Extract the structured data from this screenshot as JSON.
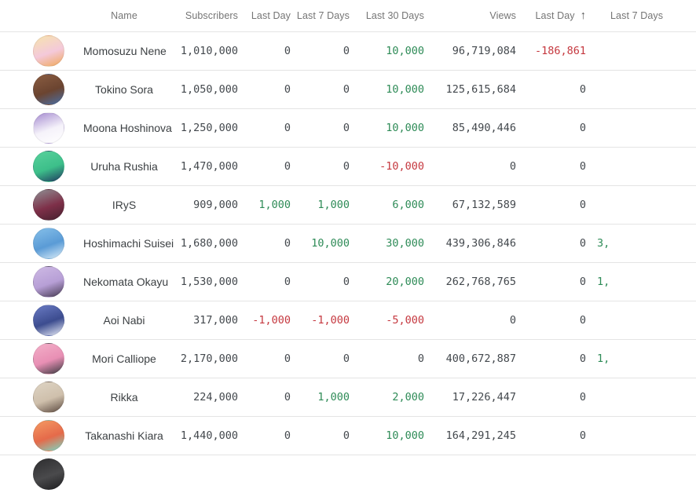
{
  "table": {
    "columns": [
      {
        "key": "name",
        "label": "Name"
      },
      {
        "key": "subscribers",
        "label": "Subscribers"
      },
      {
        "key": "last_day",
        "label": "Last Day"
      },
      {
        "key": "last_7_days",
        "label": "Last 7 Days"
      },
      {
        "key": "last_30_days",
        "label": "Last 30 Days"
      },
      {
        "key": "views",
        "label": "Views"
      },
      {
        "key": "views_last_day",
        "label": "Last Day",
        "sorted": true
      },
      {
        "key": "views_last_7_days",
        "label": "Last 7 Days",
        "clipped": true
      }
    ],
    "sort": {
      "column_label": "Last Day",
      "direction": "ascending"
    },
    "rows": [
      {
        "name": "Momosuzu Nene",
        "subscribers": "1,010,000",
        "last_day": "0",
        "last_7_days": "0",
        "last_30_days": "10,000",
        "views": "96,719,084",
        "views_last_day": "-186,861",
        "views_last_7_days": "",
        "avatar": {
          "c1": "#f6e3ae",
          "c2": "#f4c9da",
          "c3": "#f0a85a"
        }
      },
      {
        "name": "Tokino Sora",
        "subscribers": "1,050,000",
        "last_day": "0",
        "last_7_days": "0",
        "last_30_days": "10,000",
        "views": "125,615,684",
        "views_last_day": "0",
        "views_last_7_days": "",
        "avatar": {
          "c1": "#8a5d42",
          "c2": "#6b4430",
          "c3": "#4a6fa5"
        }
      },
      {
        "name": "Moona Hoshinova",
        "subscribers": "1,250,000",
        "last_day": "0",
        "last_7_days": "0",
        "last_30_days": "10,000",
        "views": "85,490,446",
        "views_last_day": "0",
        "views_last_7_days": "",
        "avatar": {
          "c1": "#a58bd0",
          "c2": "#f5f2fa",
          "c3": "#ffffff"
        }
      },
      {
        "name": "Uruha Rushia",
        "subscribers": "1,470,000",
        "last_day": "0",
        "last_7_days": "0",
        "last_30_days": "-10,000",
        "views": "0",
        "views_last_day": "0",
        "views_last_7_days": "",
        "avatar": {
          "c1": "#58d19c",
          "c2": "#3dbf8a",
          "c3": "#1f3a5f"
        }
      },
      {
        "name": "IRyS",
        "subscribers": "909,000",
        "last_day": "1,000",
        "last_7_days": "1,000",
        "last_30_days": "6,000",
        "views": "67,132,589",
        "views_last_day": "0",
        "views_last_7_days": "",
        "avatar": {
          "c1": "#8f8f93",
          "c2": "#7e3049",
          "c3": "#46202e"
        }
      },
      {
        "name": "Hoshimachi Suisei",
        "subscribers": "1,680,000",
        "last_day": "0",
        "last_7_days": "10,000",
        "last_30_days": "30,000",
        "views": "439,306,846",
        "views_last_day": "0",
        "views_last_7_days": "3,",
        "avatar": {
          "c1": "#85bfe9",
          "c2": "#5a9bd6",
          "c3": "#d9ecf8"
        }
      },
      {
        "name": "Nekomata Okayu",
        "subscribers": "1,530,000",
        "last_day": "0",
        "last_7_days": "0",
        "last_30_days": "20,000",
        "views": "262,768,765",
        "views_last_day": "0",
        "views_last_7_days": "1,",
        "avatar": {
          "c1": "#cdb9e4",
          "c2": "#b79fd6",
          "c3": "#463a52"
        }
      },
      {
        "name": "Aoi Nabi",
        "subscribers": "317,000",
        "last_day": "-1,000",
        "last_7_days": "-1,000",
        "last_30_days": "-5,000",
        "views": "0",
        "views_last_day": "0",
        "views_last_7_days": "",
        "avatar": {
          "c1": "#6a7bc4",
          "c2": "#3c4c8f",
          "c3": "#e8ecf8"
        }
      },
      {
        "name": "Mori Calliope",
        "subscribers": "2,170,000",
        "last_day": "0",
        "last_7_days": "0",
        "last_30_days": "0",
        "views": "400,672,887",
        "views_last_day": "0",
        "views_last_7_days": "1,",
        "avatar": {
          "c1": "#f3afc8",
          "c2": "#e88fb4",
          "c3": "#3a3a40"
        }
      },
      {
        "name": "Rikka",
        "subscribers": "224,000",
        "last_day": "0",
        "last_7_days": "1,000",
        "last_30_days": "2,000",
        "views": "17,226,447",
        "views_last_day": "0",
        "views_last_7_days": "",
        "avatar": {
          "c1": "#ded4c4",
          "c2": "#cfc0ac",
          "c3": "#5c4a40"
        }
      },
      {
        "name": "Takanashi Kiara",
        "subscribers": "1,440,000",
        "last_day": "0",
        "last_7_days": "0",
        "last_30_days": "10,000",
        "views": "164,291,245",
        "views_last_day": "0",
        "views_last_7_days": "",
        "avatar": {
          "c1": "#f49a63",
          "c2": "#e56a4a",
          "c3": "#7bd8c4"
        }
      },
      {
        "name": "",
        "subscribers": "",
        "last_day": "",
        "last_7_days": "",
        "last_30_days": "",
        "views": "",
        "views_last_day": "",
        "views_last_7_days": "",
        "avatar": {
          "c1": "#2e2e30",
          "c2": "#4a4a4c",
          "c3": "#1e1e20"
        }
      }
    ]
  },
  "icons": {
    "sort_ascending": "↑"
  },
  "colors": {
    "positive": "#2e8b57",
    "negative": "#c5383f",
    "header_text": "#757575",
    "number_text": "#43484d",
    "name_text": "#3c4043",
    "separator": "#e4e4e4",
    "background": "#ffffff"
  }
}
